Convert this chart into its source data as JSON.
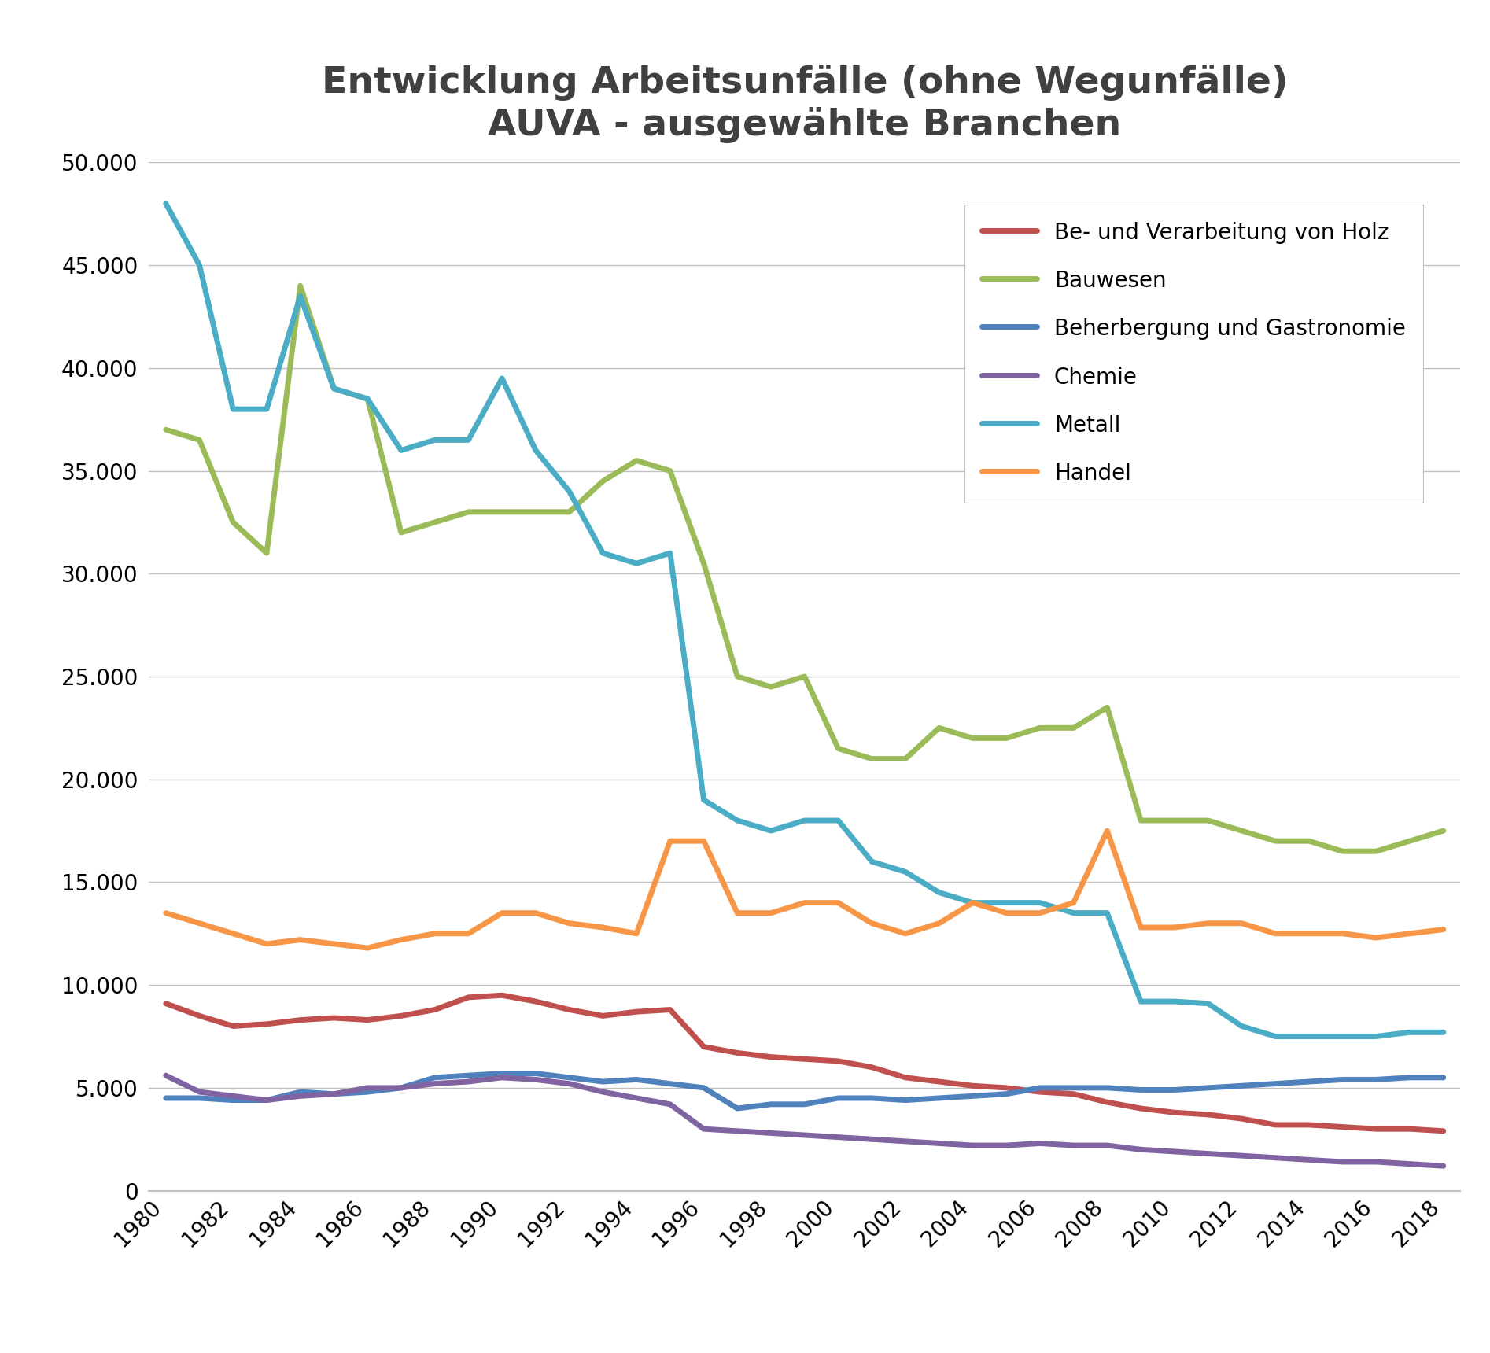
{
  "title_line1": "Entwicklung Arbeitsunfälle (ohne Wegunfälle)",
  "title_line2": "AUVA - ausgewählte Branchen",
  "years": [
    1980,
    1981,
    1982,
    1983,
    1984,
    1985,
    1986,
    1987,
    1988,
    1989,
    1990,
    1991,
    1992,
    1993,
    1994,
    1995,
    1996,
    1997,
    1998,
    1999,
    2000,
    2001,
    2002,
    2003,
    2004,
    2005,
    2006,
    2007,
    2008,
    2009,
    2010,
    2011,
    2012,
    2013,
    2014,
    2015,
    2016,
    2017,
    2018
  ],
  "series": {
    "Be- und Verarbeitung von Holz": {
      "color": "#c0504d",
      "values": [
        9100,
        8500,
        8000,
        8100,
        8300,
        8400,
        8300,
        8500,
        8800,
        9400,
        9500,
        9200,
        8800,
        8500,
        8700,
        8800,
        7000,
        6700,
        6500,
        6400,
        6300,
        6000,
        5500,
        5300,
        5100,
        5000,
        4800,
        4700,
        4300,
        4000,
        3800,
        3700,
        3500,
        3200,
        3200,
        3100,
        3000,
        3000,
        2900
      ]
    },
    "Bauwesen": {
      "color": "#9bbb59",
      "values": [
        37000,
        36500,
        32500,
        31000,
        44000,
        39000,
        38500,
        32000,
        32500,
        33000,
        33000,
        33000,
        33000,
        34500,
        35500,
        35000,
        30500,
        25000,
        24500,
        25000,
        21500,
        21000,
        21000,
        22500,
        22000,
        22000,
        22500,
        22500,
        23500,
        18000,
        18000,
        18000,
        17500,
        17000,
        17000,
        16500,
        16500,
        17000,
        17500
      ]
    },
    "Beherbergung und Gastronomie": {
      "color": "#4f81bd",
      "values": [
        4500,
        4500,
        4400,
        4400,
        4800,
        4700,
        4800,
        5000,
        5500,
        5600,
        5700,
        5700,
        5500,
        5300,
        5400,
        5200,
        5000,
        4000,
        4200,
        4200,
        4500,
        4500,
        4400,
        4500,
        4600,
        4700,
        5000,
        5000,
        5000,
        4900,
        4900,
        5000,
        5100,
        5200,
        5300,
        5400,
        5400,
        5500,
        5500
      ]
    },
    "Chemie": {
      "color": "#8064a2",
      "values": [
        5600,
        4800,
        4600,
        4400,
        4600,
        4700,
        5000,
        5000,
        5200,
        5300,
        5500,
        5400,
        5200,
        4800,
        4500,
        4200,
        3000,
        2900,
        2800,
        2700,
        2600,
        2500,
        2400,
        2300,
        2200,
        2200,
        2300,
        2200,
        2200,
        2000,
        1900,
        1800,
        1700,
        1600,
        1500,
        1400,
        1400,
        1300,
        1200
      ]
    },
    "Metall": {
      "color": "#4bacc6",
      "values": [
        48000,
        45000,
        38000,
        38000,
        43500,
        39000,
        38500,
        36000,
        36500,
        36500,
        39500,
        36000,
        34000,
        31000,
        30500,
        31000,
        19000,
        18000,
        17500,
        18000,
        18000,
        16000,
        15500,
        14500,
        14000,
        14000,
        14000,
        13500,
        13500,
        9200,
        9200,
        9100,
        8000,
        7500,
        7500,
        7500,
        7500,
        7700,
        7700
      ]
    },
    "Handel": {
      "color": "#f79646",
      "values": [
        13500,
        13000,
        12500,
        12000,
        12200,
        12000,
        11800,
        12200,
        12500,
        12500,
        13500,
        13500,
        13000,
        12800,
        12500,
        17000,
        17000,
        13500,
        13500,
        14000,
        14000,
        13000,
        12500,
        13000,
        14000,
        13500,
        13500,
        14000,
        17500,
        12800,
        12800,
        13000,
        13000,
        12500,
        12500,
        12500,
        12300,
        12500,
        12700
      ]
    }
  },
  "ylim": [
    0,
    50000
  ],
  "yticks": [
    0,
    5000,
    10000,
    15000,
    20000,
    25000,
    30000,
    35000,
    40000,
    45000,
    50000
  ],
  "background_color": "#ffffff",
  "grid_color": "#c0c0c0",
  "title_fontsize": 34,
  "tick_fontsize": 20,
  "legend_fontsize": 20,
  "line_width": 5.0
}
